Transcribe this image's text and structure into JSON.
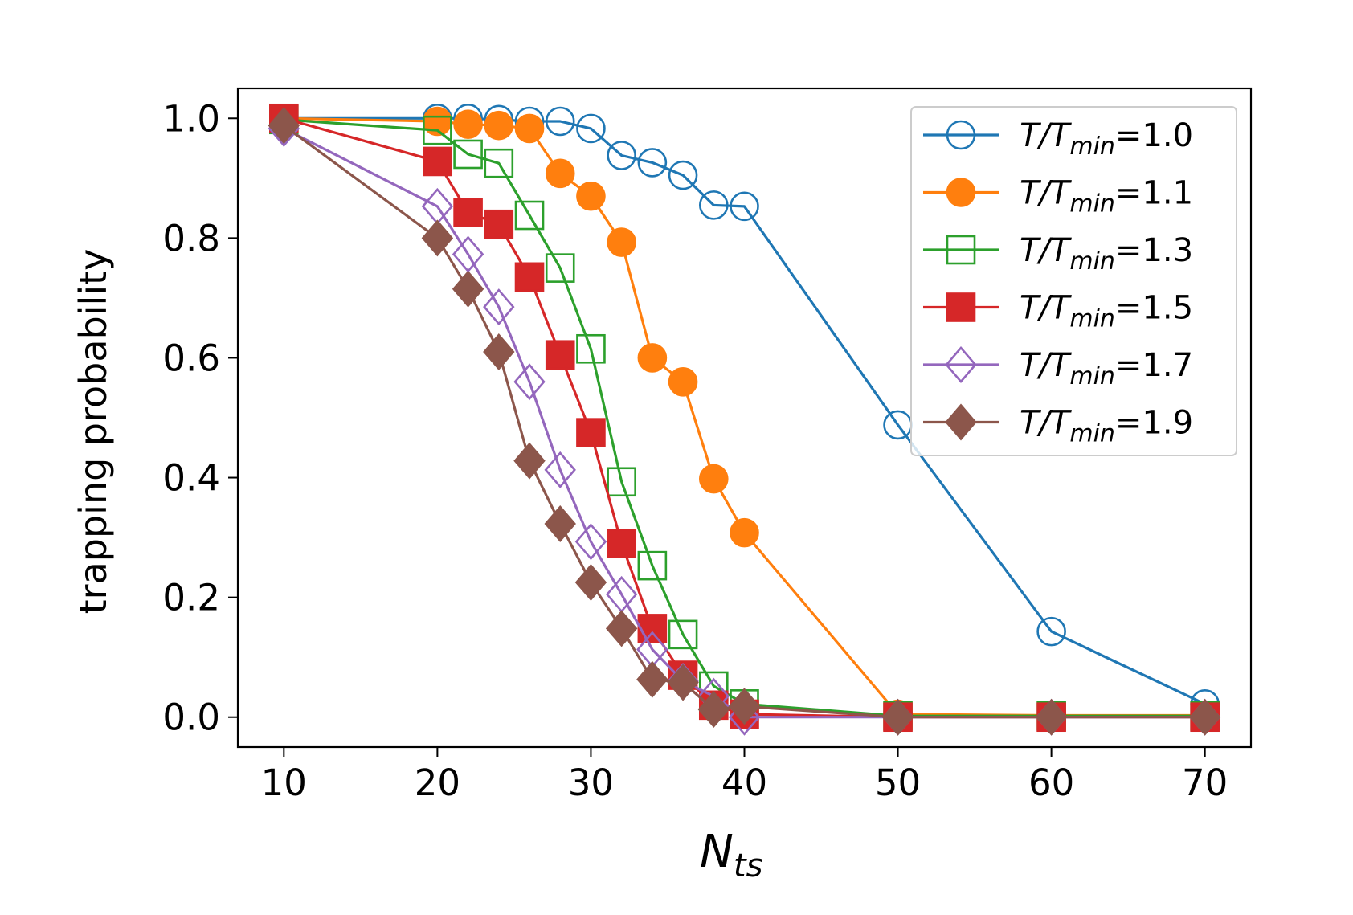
{
  "chart_data": {
    "type": "line",
    "title": "",
    "xlabel": "N",
    "xlabel_sub": "ts",
    "ylabel": "trapping probability",
    "xlim": [
      7,
      73
    ],
    "ylim": [
      -0.05,
      1.05
    ],
    "x_ticks": [
      10,
      20,
      30,
      40,
      50,
      60,
      70
    ],
    "y_ticks": [
      0.0,
      0.2,
      0.4,
      0.6,
      0.8,
      1.0
    ],
    "x_tick_labels": [
      "10",
      "20",
      "30",
      "40",
      "50",
      "60",
      "70"
    ],
    "y_tick_labels": [
      "0.0",
      "0.2",
      "0.4",
      "0.6",
      "0.8",
      "1.0"
    ],
    "legend_position": "top-right",
    "x": [
      10,
      20,
      22,
      24,
      26,
      28,
      30,
      32,
      34,
      36,
      38,
      40,
      50,
      60,
      70
    ],
    "series": [
      {
        "name": "T/T",
        "sub": "min",
        "value_label": "=1.0",
        "color": "#1f77b4",
        "marker": "circle",
        "filled": false,
        "values": [
          1.0,
          1.0,
          1.0,
          0.998,
          0.995,
          0.995,
          0.983,
          0.938,
          0.926,
          0.905,
          0.855,
          0.853,
          0.488,
          0.143,
          0.022
        ]
      },
      {
        "name": "T/T",
        "sub": "min",
        "value_label": "=1.1",
        "color": "#ff7f0e",
        "marker": "circle",
        "filled": true,
        "values": [
          1.0,
          0.995,
          0.99,
          0.988,
          0.983,
          0.908,
          0.87,
          0.793,
          0.6,
          0.56,
          0.398,
          0.308,
          0.005,
          0.003,
          0.003
        ]
      },
      {
        "name": "T/T",
        "sub": "min",
        "value_label": "=1.3",
        "color": "#2ca02c",
        "marker": "square",
        "filled": false,
        "values": [
          0.998,
          0.98,
          0.94,
          0.925,
          0.838,
          0.75,
          0.615,
          0.393,
          0.253,
          0.138,
          0.052,
          0.022,
          0.002,
          0.002,
          0.002
        ]
      },
      {
        "name": "T/T",
        "sub": "min",
        "value_label": "=1.5",
        "color": "#d62728",
        "marker": "square",
        "filled": true,
        "values": [
          1.0,
          0.928,
          0.843,
          0.823,
          0.735,
          0.605,
          0.475,
          0.29,
          0.148,
          0.07,
          0.02,
          0.005,
          0.0,
          0.0,
          0.0
        ]
      },
      {
        "name": "T/T",
        "sub": "min",
        "value_label": "=1.7",
        "color": "#9467bd",
        "marker": "diamond",
        "filled": false,
        "values": [
          0.983,
          0.853,
          0.773,
          0.685,
          0.56,
          0.413,
          0.293,
          0.205,
          0.113,
          0.06,
          0.035,
          0.0,
          0.0,
          0.0,
          0.0
        ]
      },
      {
        "name": "T/T",
        "sub": "min",
        "value_label": "=1.9",
        "color": "#8c564b",
        "marker": "diamond",
        "filled": true,
        "values": [
          0.988,
          0.8,
          0.715,
          0.61,
          0.428,
          0.323,
          0.225,
          0.148,
          0.063,
          0.058,
          0.013,
          0.018,
          0.0,
          0.0,
          0.0
        ]
      }
    ]
  }
}
